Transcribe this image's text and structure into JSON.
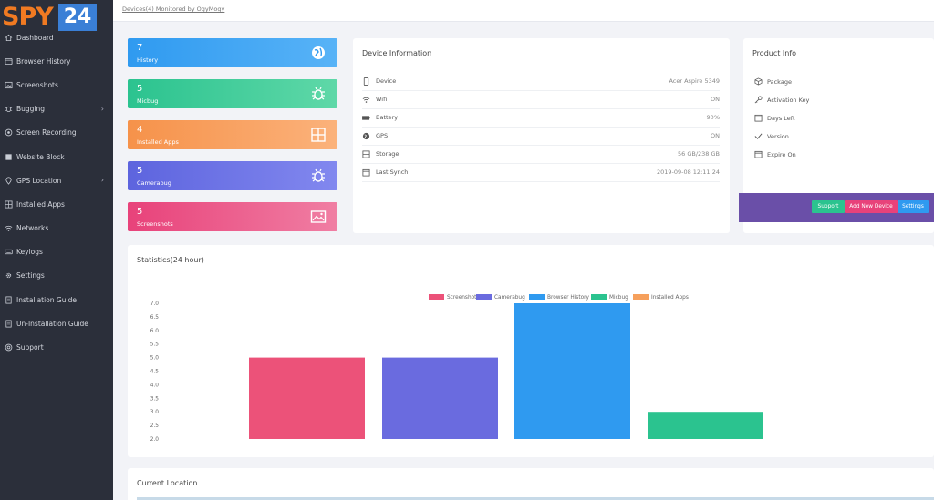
{
  "logo": {
    "spy": "SPY",
    "num": "24"
  },
  "topbar": {
    "breadcrumb": "Devices(4) Monitored by OgyMogy"
  },
  "sidebar": {
    "items": [
      {
        "label": "Dashboard",
        "icon": "home-icon"
      },
      {
        "label": "Browser History",
        "icon": "browser-icon"
      },
      {
        "label": "Screenshots",
        "icon": "image-icon"
      },
      {
        "label": "Bugging",
        "icon": "bug-icon",
        "chevron": "›"
      },
      {
        "label": "Screen Recording",
        "icon": "record-icon"
      },
      {
        "label": "Website Block",
        "icon": "block-icon"
      },
      {
        "label": "GPS Location",
        "icon": "location-icon",
        "chevron": "›"
      },
      {
        "label": "Installed Apps",
        "icon": "apps-icon"
      },
      {
        "label": "Networks",
        "icon": "wifi-icon"
      },
      {
        "label": "Keylogs",
        "icon": "keyboard-icon"
      },
      {
        "label": "Settings",
        "icon": "gear-icon"
      },
      {
        "label": "Installation Guide",
        "icon": "guide-icon"
      },
      {
        "label": "Un-Installation Guide",
        "icon": "guide-icon"
      },
      {
        "label": "Support",
        "icon": "support-icon"
      }
    ]
  },
  "cards": [
    {
      "value": "7",
      "label": "History",
      "icon": "globe-icon"
    },
    {
      "value": "5",
      "label": "Micbug",
      "icon": "bug-icon"
    },
    {
      "value": "4",
      "label": "Installed Apps",
      "icon": "grid-icon"
    },
    {
      "value": "5",
      "label": "Camerabug",
      "icon": "bug-icon"
    },
    {
      "value": "5",
      "label": "Screenshots",
      "icon": "picture-icon"
    }
  ],
  "device": {
    "title": "Device Information",
    "rows": [
      {
        "label": "Device",
        "value": "Acer Aspire 5349",
        "icon": "phone-icon"
      },
      {
        "label": "Wifi",
        "value": "ON",
        "icon": "wifi-icon"
      },
      {
        "label": "Battery",
        "value": "90%",
        "icon": "battery-icon"
      },
      {
        "label": "GPS",
        "value": "ON",
        "icon": "globe-icon"
      },
      {
        "label": "Storage",
        "value": "56 GB/238 GB",
        "icon": "storage-icon"
      },
      {
        "label": "Last Synch",
        "value": "2019-09-08 12:11:24",
        "icon": "calendar-icon"
      }
    ]
  },
  "product": {
    "title": "Product Info",
    "rows": [
      {
        "label": "Package",
        "icon": "package-icon"
      },
      {
        "label": "Activation Key",
        "icon": "key-icon"
      },
      {
        "label": "Days Left",
        "icon": "calendar-icon"
      },
      {
        "label": "Version",
        "icon": "check-icon"
      },
      {
        "label": "Expire On",
        "icon": "calendar-icon"
      }
    ],
    "buttons": {
      "support": "Support",
      "add_device": "Add New Device",
      "settings": "Settings"
    }
  },
  "stats": {
    "title": "Statistics(24 hour)"
  },
  "location": {
    "title": "Current Location"
  },
  "chart_data": {
    "type": "bar",
    "title": "Statistics(24 hour)",
    "categories": [
      "Screenshots",
      "Camerabug",
      "Browser History",
      "Micbug",
      "Installed Apps"
    ],
    "values": [
      5,
      5,
      7,
      3,
      2
    ],
    "colors": [
      "#ec5279",
      "#6a6bdf",
      "#2f9af0",
      "#2bc38f",
      "#f6a05c"
    ],
    "yticks": [
      "7.0",
      "6.5",
      "6.0",
      "5.5",
      "5.0",
      "4.5",
      "4.0",
      "3.5",
      "3.0",
      "2.5",
      "2.0"
    ],
    "ylim": [
      2,
      7
    ],
    "legend": [
      "Screenshots",
      "Camerabug",
      "Browser History",
      "Micbug",
      "Installed Apps"
    ],
    "legend_position": "top-center"
  }
}
